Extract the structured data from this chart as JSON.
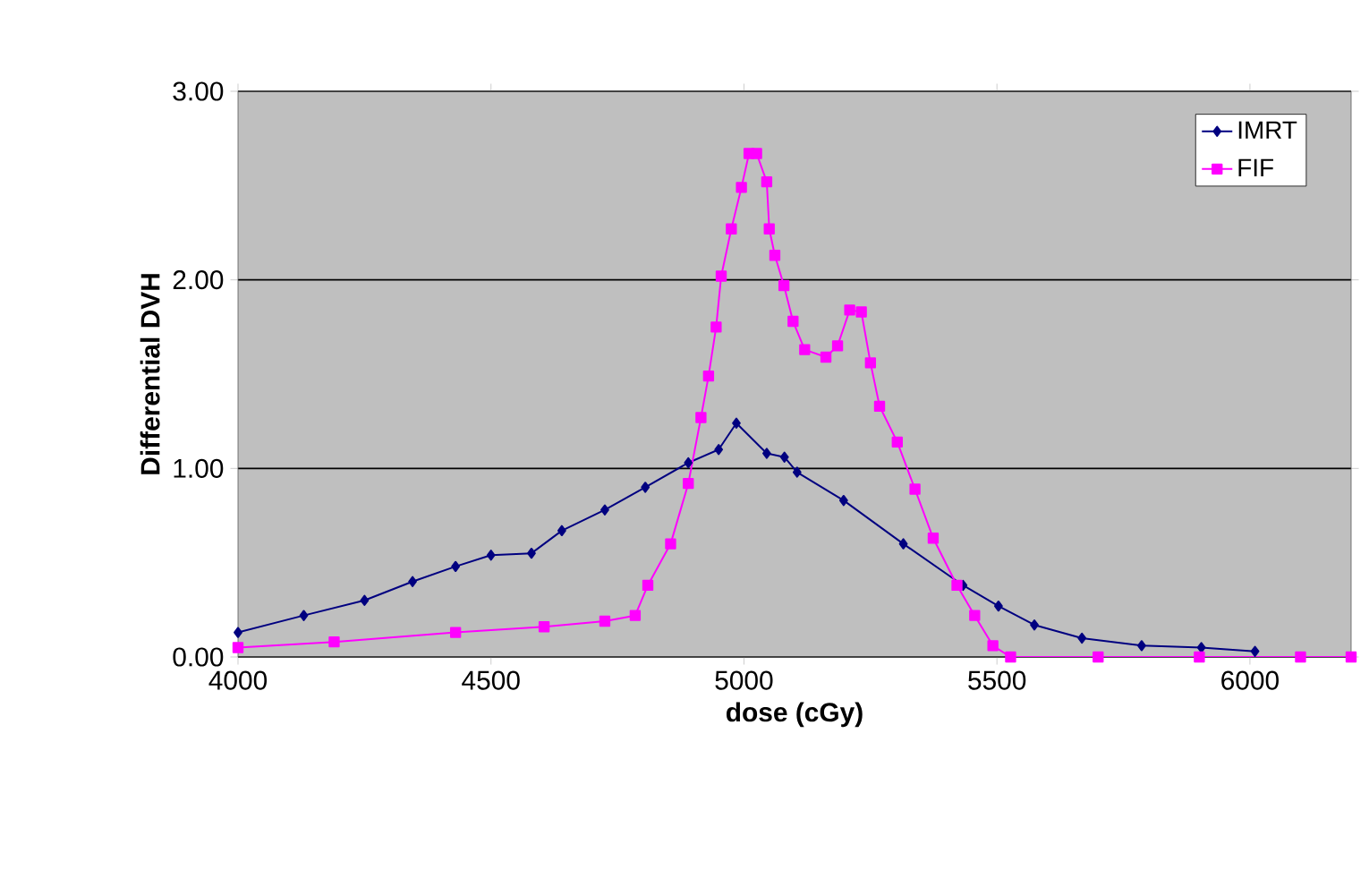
{
  "chart_data": {
    "type": "line",
    "xlabel": "dose (cGy)",
    "ylabel": "Differential DVH",
    "xlim": [
      4000,
      6200
    ],
    "xticks": [
      4000,
      4500,
      5000,
      5500,
      6000
    ],
    "ylim": [
      0,
      3
    ],
    "yticks": [
      {
        "value": 0,
        "label": "0.00"
      },
      {
        "value": 1,
        "label": "1.00"
      },
      {
        "value": 2,
        "label": "2.00"
      },
      {
        "value": 3,
        "label": "3.00"
      }
    ],
    "grid": "y",
    "legend": "top right",
    "series": [
      {
        "name": "IMRT",
        "color": "#000080",
        "marker": "diamond",
        "x": [
          4000,
          4130,
          4250,
          4345,
          4430,
          4500,
          4580,
          4640,
          4725,
          4805,
          4890,
          4950,
          4985,
          5045,
          5080,
          5105,
          5197,
          5315,
          5433,
          5503,
          5574,
          5668,
          5786,
          5904,
          6010
        ],
        "values": [
          0.13,
          0.22,
          0.3,
          0.4,
          0.48,
          0.54,
          0.55,
          0.67,
          0.78,
          0.9,
          1.03,
          1.1,
          1.24,
          1.08,
          1.06,
          0.98,
          0.83,
          0.6,
          0.38,
          0.27,
          0.17,
          0.1,
          0.06,
          0.05,
          0.03
        ]
      },
      {
        "name": "FIF",
        "color": "#ff00ff",
        "marker": "square",
        "x": [
          4000,
          4190,
          4430,
          4605,
          4725,
          4785,
          4810,
          4855,
          4890,
          4915,
          4930,
          4945,
          4955,
          4975,
          4995,
          5010,
          5025,
          5045,
          5050,
          5061,
          5079,
          5097,
          5120,
          5162,
          5185,
          5209,
          5232,
          5250,
          5268,
          5303,
          5338,
          5374,
          5421,
          5456,
          5492,
          5527,
          5700,
          5900,
          6100,
          6200
        ],
        "values": [
          0.05,
          0.08,
          0.13,
          0.16,
          0.19,
          0.22,
          0.38,
          0.6,
          0.92,
          1.27,
          1.49,
          1.75,
          2.02,
          2.27,
          2.49,
          2.67,
          2.67,
          2.52,
          2.27,
          2.13,
          1.97,
          1.78,
          1.63,
          1.59,
          1.65,
          1.84,
          1.83,
          1.56,
          1.33,
          1.14,
          0.89,
          0.63,
          0.38,
          0.22,
          0.06,
          0.0,
          0.0,
          0.0,
          0.0,
          0.0
        ]
      }
    ]
  }
}
